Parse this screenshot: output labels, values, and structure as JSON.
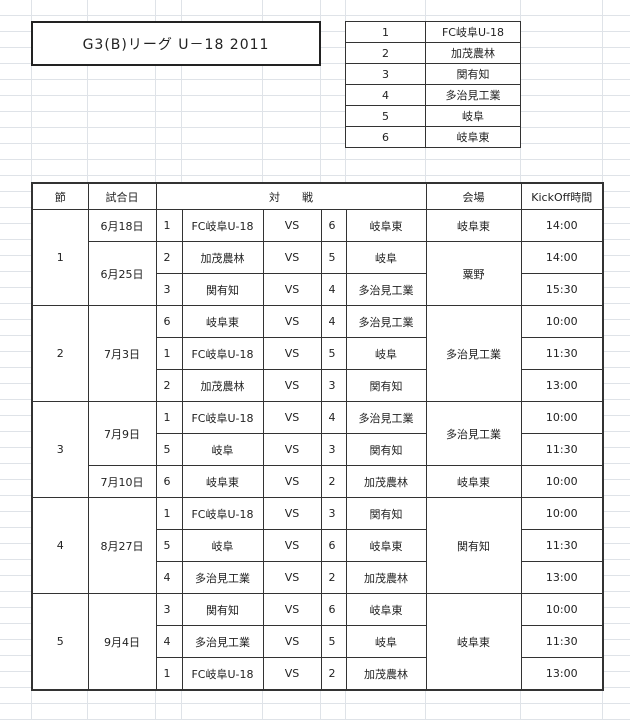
{
  "title": "G3(B)リーグ U－18 2011",
  "teams": [
    {
      "no": "1",
      "name": "FC岐阜U-18"
    },
    {
      "no": "2",
      "name": "加茂農林"
    },
    {
      "no": "3",
      "name": "関有知"
    },
    {
      "no": "4",
      "name": "多治見工業"
    },
    {
      "no": "5",
      "name": "岐阜"
    },
    {
      "no": "6",
      "name": "岐阜東"
    }
  ],
  "schedule_header": {
    "round": "節",
    "date": "試合日",
    "match": "対　　戦",
    "venue": "会場",
    "kickoff": "KickOff時間"
  },
  "rounds": [
    {
      "round": "1",
      "matches": [
        {
          "date": "6月18日",
          "date_span": 1,
          "home_no": "1",
          "home": "FC岐阜U-18",
          "vs": "VS",
          "away_no": "6",
          "away": "岐阜東",
          "venue": "岐阜東",
          "venue_span": 1,
          "time": "14:00"
        },
        {
          "date": "6月25日",
          "date_span": 2,
          "home_no": "2",
          "home": "加茂農林",
          "vs": "VS",
          "away_no": "5",
          "away": "岐阜",
          "venue": "粟野",
          "venue_span": 2,
          "time": "14:00"
        },
        {
          "home_no": "3",
          "home": "関有知",
          "vs": "VS",
          "away_no": "4",
          "away": "多治見工業",
          "time": "15:30"
        }
      ]
    },
    {
      "round": "2",
      "matches": [
        {
          "date": "7月3日",
          "date_span": 3,
          "home_no": "6",
          "home": "岐阜東",
          "vs": "VS",
          "away_no": "4",
          "away": "多治見工業",
          "venue": "多治見工業",
          "venue_span": 3,
          "time": "10:00"
        },
        {
          "home_no": "1",
          "home": "FC岐阜U-18",
          "vs": "VS",
          "away_no": "5",
          "away": "岐阜",
          "time": "11:30"
        },
        {
          "home_no": "2",
          "home": "加茂農林",
          "vs": "VS",
          "away_no": "3",
          "away": "関有知",
          "time": "13:00"
        }
      ]
    },
    {
      "round": "3",
      "matches": [
        {
          "date": "7月9日",
          "date_span": 2,
          "home_no": "1",
          "home": "FC岐阜U-18",
          "vs": "VS",
          "away_no": "4",
          "away": "多治見工業",
          "venue": "多治見工業",
          "venue_span": 2,
          "time": "10:00"
        },
        {
          "home_no": "5",
          "home": "岐阜",
          "vs": "VS",
          "away_no": "3",
          "away": "関有知",
          "time": "11:30"
        },
        {
          "date": "7月10日",
          "date_span": 1,
          "home_no": "6",
          "home": "岐阜東",
          "vs": "VS",
          "away_no": "2",
          "away": "加茂農林",
          "venue": "岐阜東",
          "venue_span": 1,
          "time": "10:00"
        }
      ]
    },
    {
      "round": "4",
      "matches": [
        {
          "date": "8月27日",
          "date_span": 3,
          "home_no": "1",
          "home": "FC岐阜U-18",
          "vs": "VS",
          "away_no": "3",
          "away": "関有知",
          "venue": "関有知",
          "venue_span": 3,
          "time": "10:00"
        },
        {
          "home_no": "5",
          "home": "岐阜",
          "vs": "VS",
          "away_no": "6",
          "away": "岐阜東",
          "time": "11:30"
        },
        {
          "home_no": "4",
          "home": "多治見工業",
          "vs": "VS",
          "away_no": "2",
          "away": "加茂農林",
          "time": "13:00"
        }
      ]
    },
    {
      "round": "5",
      "matches": [
        {
          "date": "9月4日",
          "date_span": 3,
          "home_no": "3",
          "home": "関有知",
          "vs": "VS",
          "away_no": "6",
          "away": "岐阜東",
          "venue": "岐阜東",
          "venue_span": 3,
          "time": "10:00"
        },
        {
          "home_no": "4",
          "home": "多治見工業",
          "vs": "VS",
          "away_no": "5",
          "away": "岐阜",
          "time": "11:30"
        },
        {
          "home_no": "1",
          "home": "FC岐阜U-18",
          "vs": "VS",
          "away_no": "2",
          "away": "加茂農林",
          "time": "13:00"
        }
      ]
    }
  ]
}
